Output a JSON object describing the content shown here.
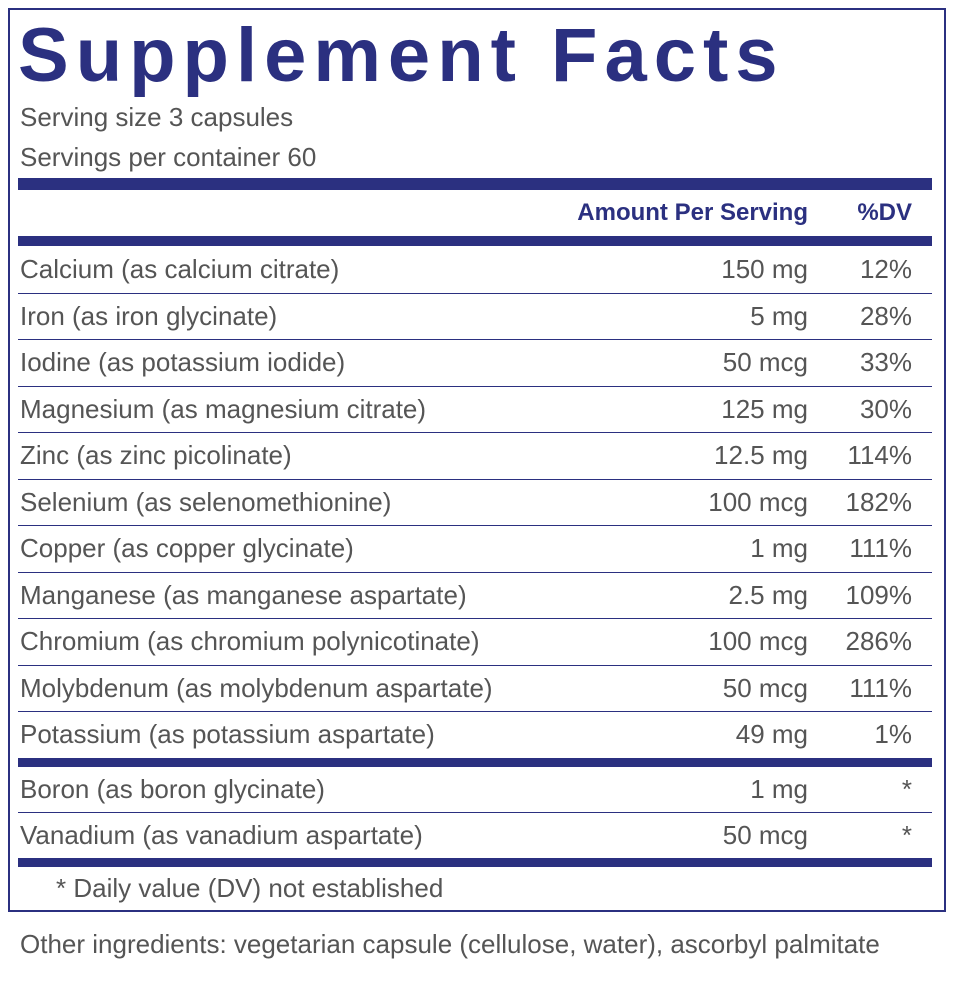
{
  "title": "Supplement Facts",
  "serving_size": "Serving size  3 capsules",
  "servings_per_container": "Servings per container  60",
  "table": {
    "header": {
      "amount": "Amount Per Serving",
      "dv": "%DV"
    },
    "rows": [
      [
        "Calcium (as calcium citrate)",
        "150 mg",
        "12%"
      ],
      [
        "Iron (as iron glycinate)",
        "5 mg",
        "28%"
      ],
      [
        "Iodine (as potassium iodide)",
        "50 mcg",
        "33%"
      ],
      [
        "Magnesium (as magnesium citrate)",
        "125 mg",
        "30%"
      ],
      [
        "Zinc (as zinc picolinate)",
        "12.5 mg",
        "114%"
      ],
      [
        "Selenium (as selenomethionine)",
        "100 mcg",
        "182%"
      ],
      [
        "Copper (as copper glycinate)",
        "1 mg",
        "111%"
      ],
      [
        "Manganese (as manganese aspartate)",
        "2.5 mg",
        "109%"
      ],
      [
        "Chromium (as chromium polynicotinate)",
        "100 mcg",
        "286%"
      ],
      [
        "Molybdenum (as molybdenum aspartate)",
        "50 mcg",
        "111%"
      ],
      [
        "Potassium (as potassium aspartate)",
        "49 mg",
        "1%"
      ]
    ],
    "rows_no_dv": [
      [
        "Boron (as boron glycinate)",
        "1 mg",
        "*"
      ],
      [
        "Vanadium (as vanadium aspartate)",
        "50 mcg",
        "*"
      ]
    ]
  },
  "footnote": "* Daily value (DV) not established",
  "other_ingredients": "Other ingredients: vegetarian capsule (cellulose, water), ascorbyl palmitate"
}
